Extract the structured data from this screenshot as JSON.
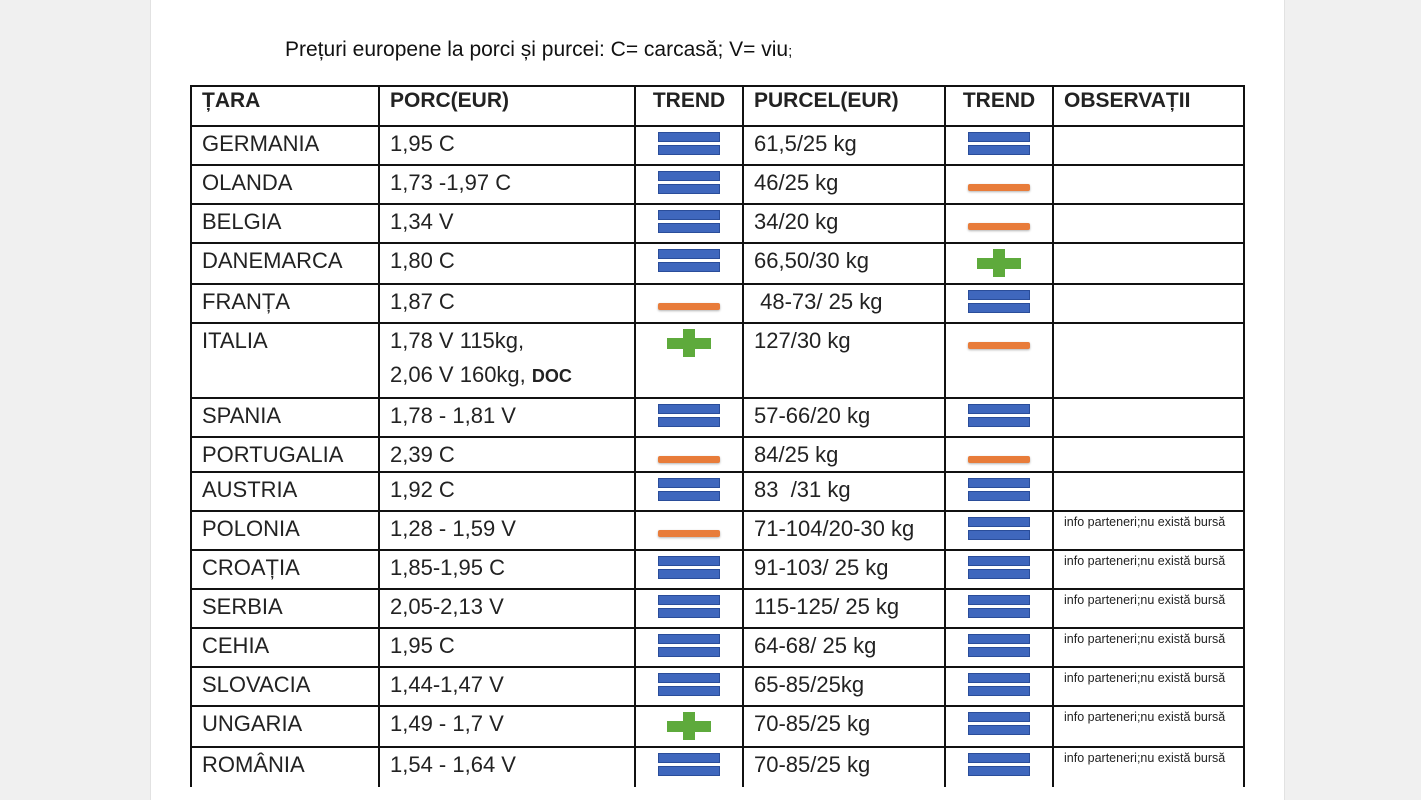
{
  "title": "Prețuri europene la porci și purcei: C= carcasă; V= viu",
  "title_suffix": ";",
  "colors": {
    "equal": "#3f67bd",
    "minus": "#e87c3a",
    "plus": "#5eaa3c"
  },
  "headers": [
    "ȚARA",
    "PORC(EUR)",
    "TREND",
    "PURCEL(EUR)",
    "TREND",
    "OBSERVAȚII"
  ],
  "rows": [
    {
      "country": "GERMANIA",
      "pig": "1,95 C",
      "pig_trend": "equal",
      "piglet": "61,5/25 kg",
      "piglet_trend": "equal",
      "obs": ""
    },
    {
      "country": "OLANDA",
      "pig": "1,73 -1,97 C",
      "pig_trend": "equal",
      "piglet": "46/25 kg",
      "piglet_trend": "minus",
      "obs": ""
    },
    {
      "country": "BELGIA",
      "pig": "1,34 V",
      "pig_trend": "equal",
      "piglet": "34/20 kg",
      "piglet_trend": "minus",
      "obs": ""
    },
    {
      "country": "DANEMARCA",
      "pig": "1,80 C",
      "pig_trend": "equal",
      "piglet": "66,50/30 kg",
      "piglet_trend": "plus",
      "obs": ""
    },
    {
      "country": "FRANȚA",
      "pig": "1,87 C",
      "pig_trend": "minus",
      "piglet": " 48-73/ 25 kg",
      "piglet_trend": "equal",
      "obs": ""
    },
    {
      "country": "ITALIA",
      "pig": "1,78 V 115kg,",
      "pig_line2": "2,06 V 160kg, ",
      "pig_doc": "DOC",
      "pig_trend": "plus",
      "piglet": "127/30 kg",
      "piglet_trend": "minus",
      "obs": ""
    },
    {
      "country": "SPANIA",
      "pig": "1,78 - 1,81 V",
      "pig_trend": "equal",
      "piglet": "57-66/20 kg",
      "piglet_trend": "equal",
      "obs": ""
    },
    {
      "country": "PORTUGALIA",
      "pig": "2,39 C",
      "pig_trend": "minus",
      "piglet": "84/25 kg",
      "piglet_trend": "minus",
      "obs": ""
    },
    {
      "country": "AUSTRIA",
      "pig": "1,92 C",
      "pig_trend": "equal",
      "piglet": "83  /31 kg",
      "piglet_trend": "equal",
      "obs": ""
    },
    {
      "country": "POLONIA",
      "pig": "1,28 - 1,59 V",
      "pig_trend": "minus",
      "piglet": "71-104/20-30 kg",
      "piglet_trend": "equal",
      "obs": "info parteneri;nu există bursă"
    },
    {
      "country": "CROAȚIA",
      "pig": "1,85-1,95 C",
      "pig_trend": "equal",
      "piglet": "91-103/ 25 kg",
      "piglet_trend": "equal",
      "obs": "info parteneri;nu există bursă"
    },
    {
      "country": "SERBIA",
      "pig": "2,05-2,13 V",
      "pig_trend": "equal",
      "piglet": "115-125/ 25 kg",
      "piglet_trend": "equal",
      "obs": "info parteneri;nu există bursă"
    },
    {
      "country": "CEHIA",
      "pig": " 1,95 C",
      "pig_trend": "equal",
      "piglet": "64-68/ 25 kg",
      "piglet_trend": "equal",
      "obs": "info parteneri;nu există bursă"
    },
    {
      "country": "SLOVACIA",
      "pig": "1,44-1,47 V",
      "pig_trend": "equal",
      "piglet": "65-85/25kg",
      "piglet_trend": "equal",
      "obs": "info parteneri;nu există bursă"
    },
    {
      "country": "UNGARIA",
      "pig": "1,49 - 1,7 V",
      "pig_trend": "plus",
      "piglet": "70-85/25 kg",
      "piglet_trend": "equal",
      "obs": "info parteneri;nu există bursă"
    },
    {
      "country": "ROMÂNIA",
      "pig": "1,54 - 1,64 V",
      "pig_trend": "equal",
      "piglet": "70-85/25 kg",
      "piglet_trend": "equal",
      "obs": "info parteneri;nu există bursă"
    }
  ]
}
